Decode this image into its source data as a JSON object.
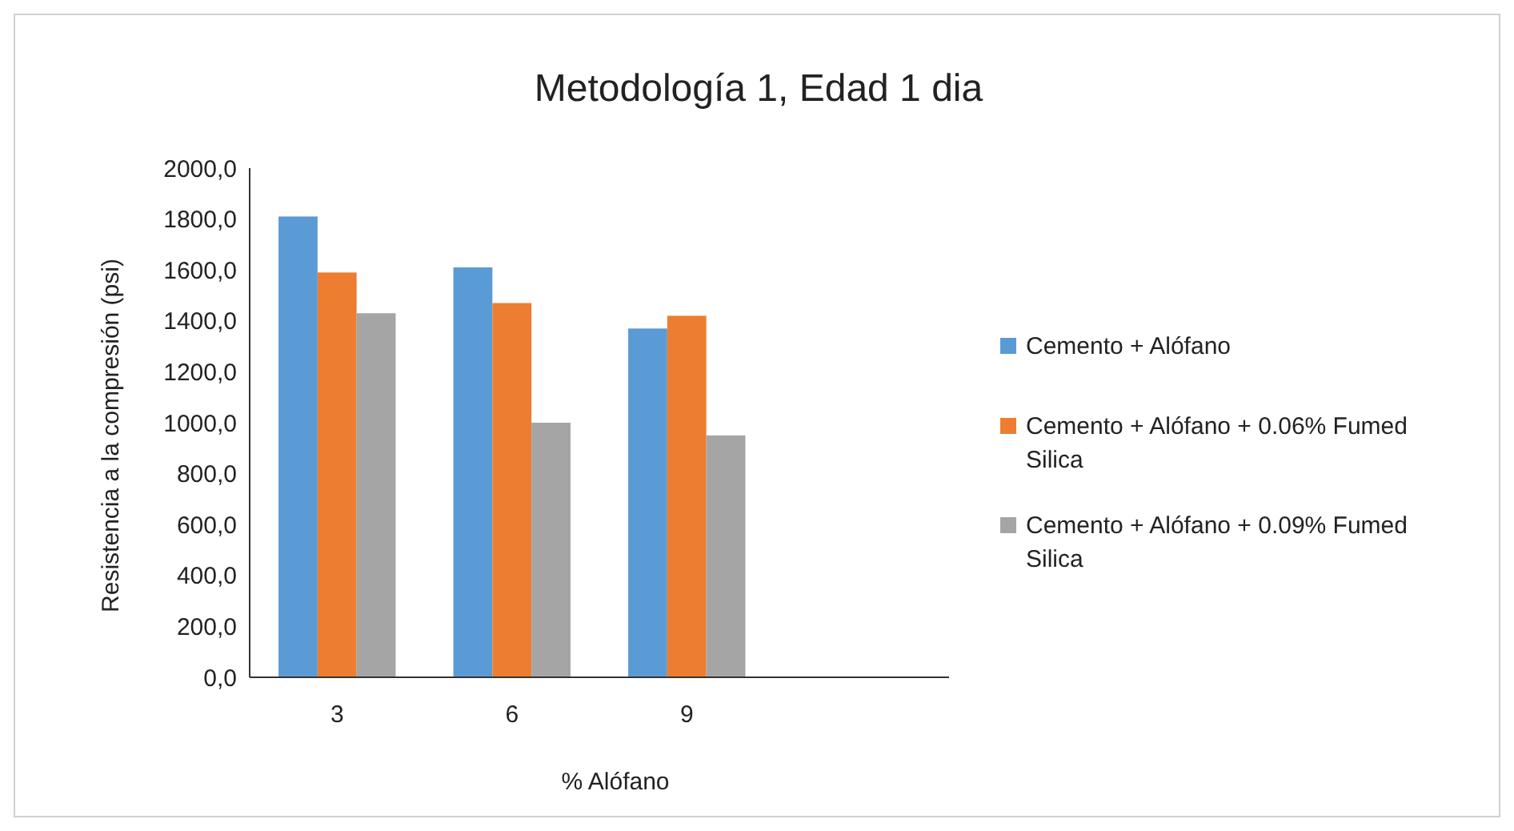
{
  "chart_data": {
    "type": "bar",
    "title": "Metodología 1, Edad 1 dia",
    "xlabel": "% Alófano",
    "ylabel": "Resistencia a la compresión (psi)",
    "categories": [
      "3",
      "6",
      "9",
      null
    ],
    "series": [
      {
        "name": "Cemento + Alófano",
        "color": "#5b9bd5",
        "values": [
          1810,
          1610,
          1370,
          null
        ]
      },
      {
        "name": "Cemento + Alófano + 0.06% Fumed Silica",
        "color": "#ed7d31",
        "values": [
          1590,
          1470,
          1420,
          null
        ]
      },
      {
        "name": "Cemento + Alófano + 0.09% Fumed Silica",
        "color": "#a5a5a5",
        "values": [
          1430,
          1000,
          950,
          null
        ]
      }
    ],
    "ylim": [
      0,
      2000
    ],
    "yticks": [
      {
        "value": 0,
        "label": "0,0"
      },
      {
        "value": 200,
        "label": "200,0"
      },
      {
        "value": 400,
        "label": "400,0"
      },
      {
        "value": 600,
        "label": "600,0"
      },
      {
        "value": 800,
        "label": "800,0"
      },
      {
        "value": 1000,
        "label": "1000,0"
      },
      {
        "value": 1200,
        "label": "1200,0"
      },
      {
        "value": 1400,
        "label": "1400,0"
      },
      {
        "value": 1600,
        "label": "1600,0"
      },
      {
        "value": 1800,
        "label": "1800,0"
      },
      {
        "value": 2000,
        "label": "2000,0"
      }
    ],
    "grid": false,
    "legend": "right"
  }
}
